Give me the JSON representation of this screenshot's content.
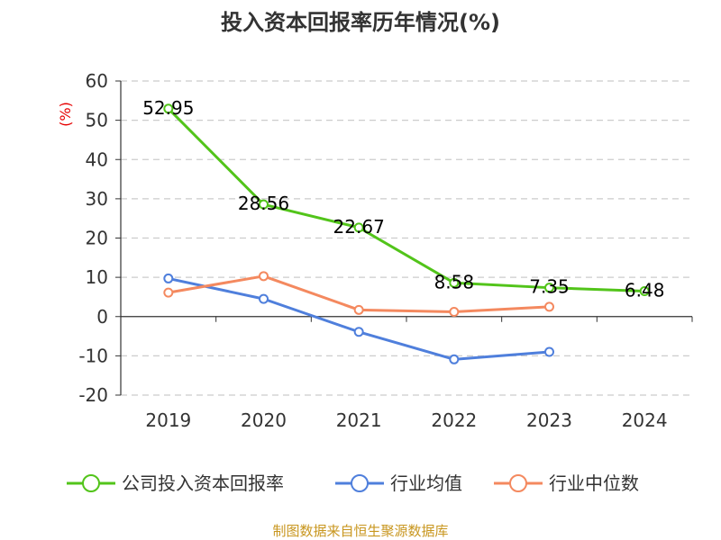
{
  "chart_data": {
    "type": "line",
    "title": "投入资本回报率历年情况(%)",
    "y_unit_label": "(%)",
    "categories": [
      "2019",
      "2020",
      "2021",
      "2022",
      "2023",
      "2024"
    ],
    "ylim": [
      -20,
      60
    ],
    "yticks": [
      -20,
      -10,
      0,
      10,
      20,
      30,
      40,
      50,
      60
    ],
    "ytick_labels": [
      "-20",
      "-10",
      "0",
      "10",
      "20",
      "30",
      "40",
      "50",
      "60"
    ],
    "grid": true,
    "legend_position": "bottom",
    "series": [
      {
        "name": "公司投入资本回报率",
        "color": "#52c41a",
        "values": [
          52.95,
          28.56,
          22.67,
          8.58,
          7.35,
          6.48
        ],
        "labels": [
          "52.95",
          "28.56",
          "22.67",
          "8.58",
          "7.35",
          "6.48"
        ]
      },
      {
        "name": "行业均值",
        "color": "#4f7fdc",
        "values": [
          9.7,
          4.5,
          -3.9,
          -10.9,
          -9.0,
          null
        ]
      },
      {
        "name": "行业中位数",
        "color": "#f4895f",
        "values": [
          6.1,
          10.3,
          1.7,
          1.2,
          2.5,
          null
        ]
      }
    ]
  },
  "footer": {
    "source": "制图数据来自恒生聚源数据库"
  }
}
